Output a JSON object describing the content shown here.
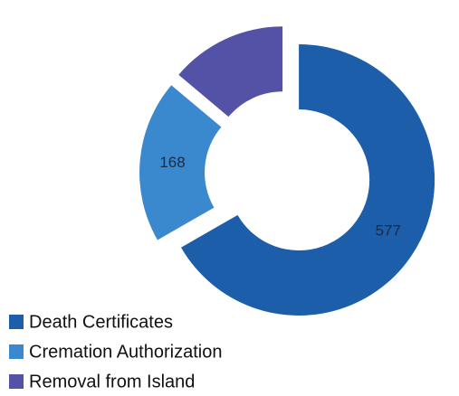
{
  "chart_data": {
    "type": "pie",
    "donut": true,
    "explode": true,
    "categories": [
      "Death Certificates",
      "Cremation Authorization",
      "Removal from Island"
    ],
    "values": [
      577,
      168,
      120
    ],
    "value_labels": [
      "577",
      "168",
      null
    ],
    "colors": [
      "#1d5eab",
      "#3a89cf",
      "#5352a6"
    ],
    "legend": "bottom-left"
  }
}
